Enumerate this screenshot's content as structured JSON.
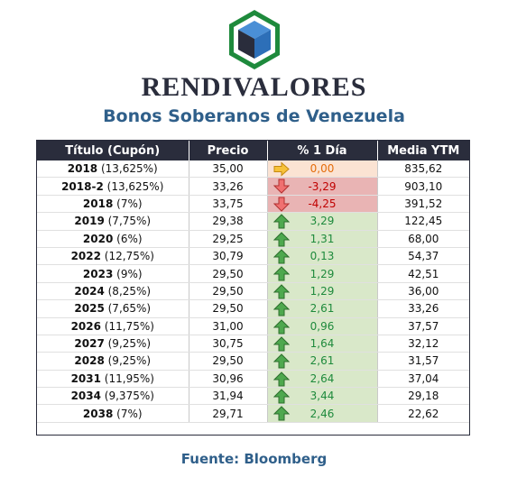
{
  "brand": "RENDIVALORES",
  "subtitle": "Bonos Soberanos de Venezuela",
  "source": "Fuente: Bloomberg",
  "logo_icon": "cube-hexagon-logo",
  "colors": {
    "header_bg": "#2a2d3c",
    "accent_blue": "#2f5f8a",
    "positive_bg": "#d9e8c9",
    "positive_text": "#1e8a3c",
    "negative_bg": "#e9b4b4",
    "negative_text": "#c00000",
    "neutral_bg": "#fbe3d3",
    "neutral_text": "#e46c0a"
  },
  "table": {
    "headers": [
      "Título (Cupón)",
      "Precio",
      "% 1 Día",
      "Media YTM"
    ],
    "rows": [
      {
        "year": "2018",
        "coupon": "(13,625%)",
        "price": "35,00",
        "change": "0,00",
        "trend": "neutral",
        "ytm": "835,62"
      },
      {
        "year": "2018-2",
        "coupon": "(13,625%)",
        "price": "33,26",
        "change": "-3,29",
        "trend": "down",
        "ytm": "903,10"
      },
      {
        "year": "2018",
        "coupon": "(7%)",
        "price": "33,75",
        "change": "-4,25",
        "trend": "down",
        "ytm": "391,52"
      },
      {
        "year": "2019",
        "coupon": "(7,75%)",
        "price": "29,38",
        "change": "3,29",
        "trend": "up",
        "ytm": "122,45"
      },
      {
        "year": "2020",
        "coupon": "(6%)",
        "price": "29,25",
        "change": "1,31",
        "trend": "up",
        "ytm": "68,00"
      },
      {
        "year": "2022",
        "coupon": "(12,75%)",
        "price": "30,79",
        "change": "0,13",
        "trend": "up",
        "ytm": "54,37"
      },
      {
        "year": "2023",
        "coupon": "(9%)",
        "price": "29,50",
        "change": "1,29",
        "trend": "up",
        "ytm": "42,51"
      },
      {
        "year": "2024",
        "coupon": "(8,25%)",
        "price": "29,50",
        "change": "1,29",
        "trend": "up",
        "ytm": "36,00"
      },
      {
        "year": "2025",
        "coupon": "(7,65%)",
        "price": "29,50",
        "change": "2,61",
        "trend": "up",
        "ytm": "33,26"
      },
      {
        "year": "2026",
        "coupon": "(11,75%)",
        "price": "31,00",
        "change": "0,96",
        "trend": "up",
        "ytm": "37,57"
      },
      {
        "year": "2027",
        "coupon": "(9,25%)",
        "price": "30,75",
        "change": "1,64",
        "trend": "up",
        "ytm": "32,12"
      },
      {
        "year": "2028",
        "coupon": "(9,25%)",
        "price": "29,50",
        "change": "2,61",
        "trend": "up",
        "ytm": "31,57"
      },
      {
        "year": "2031",
        "coupon": "(11,95%)",
        "price": "30,96",
        "change": "2,64",
        "trend": "up",
        "ytm": "37,04"
      },
      {
        "year": "2034",
        "coupon": "(9,375%)",
        "price": "31,94",
        "change": "3,44",
        "trend": "up",
        "ytm": "29,18"
      },
      {
        "year": "2038",
        "coupon": "(7%)",
        "price": "29,71",
        "change": "2,46",
        "trend": "up",
        "ytm": "22,62"
      }
    ]
  }
}
